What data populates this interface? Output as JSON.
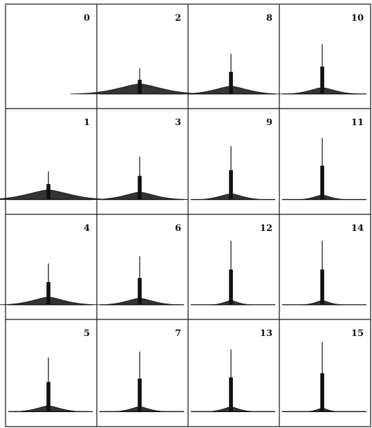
{
  "colors": {
    "ink": "#111111",
    "background": "#ffffff"
  },
  "chart_data": {
    "type": "line",
    "layout": "4x4 grid of small multiple panels, each with an unlabeled baseline and one sharp central peak",
    "grid": false,
    "panels": [
      {
        "label": "0",
        "peak_height": 0.0
      },
      {
        "label": "2",
        "peak_height": 0.35
      },
      {
        "label": "8",
        "peak_height": 0.55
      },
      {
        "label": "10",
        "peak_height": 0.68
      },
      {
        "label": "1",
        "peak_height": 0.38
      },
      {
        "label": "3",
        "peak_height": 0.58
      },
      {
        "label": "9",
        "peak_height": 0.72
      },
      {
        "label": "11",
        "peak_height": 0.83
      },
      {
        "label": "4",
        "peak_height": 0.56
      },
      {
        "label": "6",
        "peak_height": 0.66
      },
      {
        "label": "12",
        "peak_height": 0.87
      },
      {
        "label": "14",
        "peak_height": 0.87
      },
      {
        "label": "5",
        "peak_height": 0.72
      },
      {
        "label": "7",
        "peak_height": 0.8
      },
      {
        "label": "13",
        "peak_height": 0.83
      },
      {
        "label": "15",
        "peak_height": 0.93
      }
    ]
  }
}
